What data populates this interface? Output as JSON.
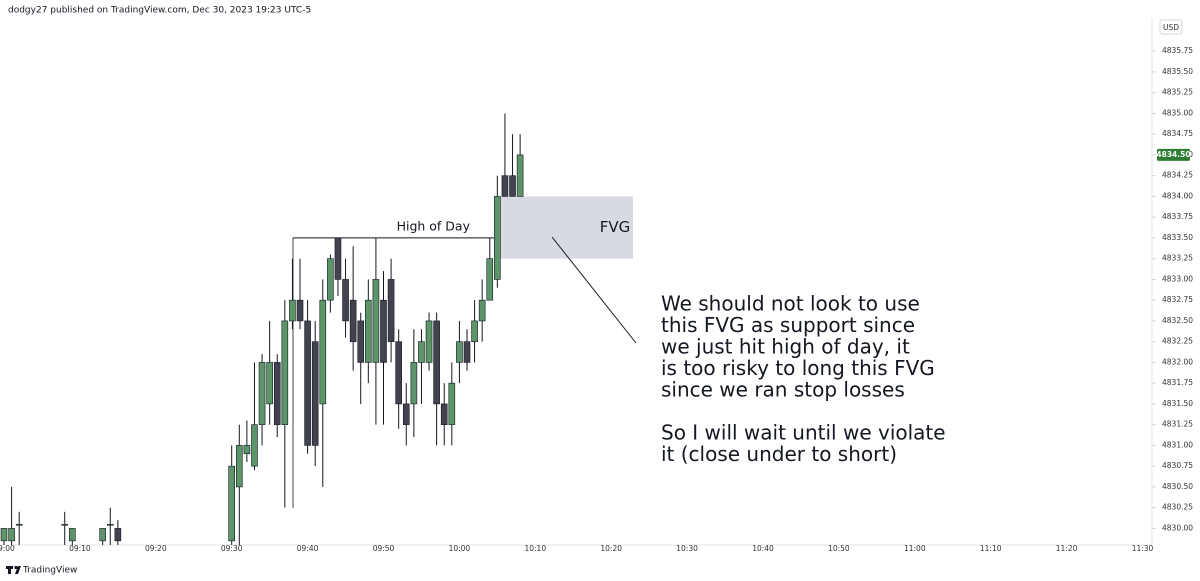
{
  "header": "dodgy27 published on TradingView.com, Dec 30, 2023 19:23 UTC-5",
  "footer": "TradingView",
  "chart_data": {
    "type": "candlestick",
    "currency": "USD",
    "up_color": "#5b9568",
    "down_color": "#434350",
    "x": [
      "09:00",
      "09:01",
      "09:02",
      "09:08",
      "09:09",
      "09:13",
      "09:14",
      "09:15",
      "09:30",
      "09:31",
      "09:32",
      "09:33",
      "09:34",
      "09:35",
      "09:36",
      "09:37",
      "09:38",
      "09:39",
      "09:40",
      "09:41",
      "09:42",
      "09:43",
      "09:44",
      "09:45",
      "09:46",
      "09:47",
      "09:48",
      "09:49",
      "09:50",
      "09:51",
      "09:52",
      "09:53",
      "09:54",
      "09:55",
      "09:56",
      "09:57",
      "09:58",
      "09:59",
      "10:00",
      "10:01",
      "10:02",
      "10:03",
      "10:04",
      "10:05",
      "10:06",
      "10:07",
      "10:08"
    ],
    "open": [
      4829.85,
      4829.85,
      4830.05,
      4830.05,
      4829.85,
      4829.85,
      4830.05,
      4830.0,
      4829.85,
      4830.5,
      4830.9,
      4830.75,
      4831.25,
      4831.5,
      4832.0,
      4831.25,
      4832.5,
      4832.75,
      4832.5,
      4832.25,
      4831.5,
      4832.75,
      4833.5,
      4833.0,
      4832.75,
      4832.5,
      4832.0,
      4832.0,
      4832.75,
      4833.0,
      4832.25,
      4831.5,
      4831.5,
      4832.0,
      4832.0,
      4832.5,
      4831.5,
      4831.25,
      4832.0,
      4832.25,
      4832.25,
      4832.5,
      4832.75,
      4833.0,
      4834.25,
      4834.25,
      4834.0
    ],
    "high": [
      4830.0,
      4830.5,
      4830.2,
      4830.2,
      4830.0,
      4830.0,
      4830.25,
      4830.1,
      4831.0,
      4831.25,
      4831.3,
      4832.0,
      4832.1,
      4832.5,
      4832.1,
      4832.75,
      4833.25,
      4833.25,
      4832.75,
      4832.5,
      4833.0,
      4833.3,
      4833.5,
      4833.25,
      4833.4,
      4832.6,
      4833.0,
      4833.5,
      4833.1,
      4833.25,
      4832.4,
      4831.75,
      4832.4,
      4832.4,
      4832.6,
      4832.6,
      4831.75,
      4832.0,
      4832.5,
      4832.4,
      4832.75,
      4833.0,
      4833.5,
      4834.25,
      4835.0,
      4834.75,
      4834.75
    ],
    "low": [
      4829.8,
      4829.8,
      4829.8,
      4829.8,
      4829.8,
      4829.8,
      4829.8,
      4829.8,
      4829.8,
      4829.8,
      4830.8,
      4830.7,
      4831.0,
      4831.25,
      4831.1,
      4830.25,
      4832.4,
      4832.4,
      4830.9,
      4830.75,
      4830.5,
      4832.6,
      4832.8,
      4832.3,
      4831.9,
      4831.5,
      4831.75,
      4831.25,
      4831.25,
      4832.0,
      4831.2,
      4831.0,
      4831.1,
      4831.5,
      4831.9,
      4831.0,
      4831.0,
      4831.0,
      4831.75,
      4831.9,
      4832.0,
      4832.25,
      4832.75,
      4832.9,
      4834.0,
      4834.0,
      4834.0
    ],
    "close": [
      4830.0,
      4830.0,
      4830.05,
      4830.05,
      4830.0,
      4830.0,
      4830.05,
      4829.85,
      4830.75,
      4831.0,
      4831.0,
      4831.25,
      4832.0,
      4832.0,
      4831.25,
      4832.5,
      4832.75,
      4832.5,
      4831.0,
      4831.0,
      4832.75,
      4833.25,
      4833.0,
      4832.5,
      4832.25,
      4832.0,
      4832.75,
      4833.0,
      4832.0,
      4832.25,
      4831.5,
      4831.25,
      4832.0,
      4832.25,
      4832.5,
      4831.5,
      4831.25,
      4831.75,
      4832.25,
      4832.0,
      4832.5,
      4832.75,
      4833.25,
      4834.0,
      4834.0,
      4834.0,
      4834.5
    ],
    "ylim": [
      4829.8,
      4836.15
    ],
    "yticks": [
      {
        "value": 4830.0,
        "label": "4830.00"
      },
      {
        "value": 4830.25,
        "label": "4830.25"
      },
      {
        "value": 4830.5,
        "label": "4830.50"
      },
      {
        "value": 4830.75,
        "label": "4830.75"
      },
      {
        "value": 4831.0,
        "label": "4831.00"
      },
      {
        "value": 4831.25,
        "label": "4831.25"
      },
      {
        "value": 4831.5,
        "label": "4831.50"
      },
      {
        "value": 4831.75,
        "label": "4831.75"
      },
      {
        "value": 4832.0,
        "label": "4832.00"
      },
      {
        "value": 4832.25,
        "label": "4832.25"
      },
      {
        "value": 4832.5,
        "label": "4832.50"
      },
      {
        "value": 4832.75,
        "label": "4832.75"
      },
      {
        "value": 4833.0,
        "label": "4833.00"
      },
      {
        "value": 4833.25,
        "label": "4833.25"
      },
      {
        "value": 4833.5,
        "label": "4833.50"
      },
      {
        "value": 4833.75,
        "label": "4833.75"
      },
      {
        "value": 4834.0,
        "label": "4834.00"
      },
      {
        "value": 4834.25,
        "label": "4834.25"
      },
      {
        "value": 4834.5,
        "label": "4834.50"
      },
      {
        "value": 4834.75,
        "label": "4834.75"
      },
      {
        "value": 4835.0,
        "label": "4835.00"
      },
      {
        "value": 4835.25,
        "label": "4835.25"
      },
      {
        "value": 4835.5,
        "label": "4835.50"
      },
      {
        "value": 4835.75,
        "label": "4835.75"
      }
    ],
    "xticks": [
      "09:00",
      "09:10",
      "09:20",
      "09:30",
      "09:40",
      "09:50",
      "10:00",
      "10:10",
      "10:20",
      "10:30",
      "10:40",
      "10:50",
      "11:00",
      "11:10",
      "11:20",
      "11:30"
    ],
    "last_price": {
      "value": 4834.5,
      "label": "4834.50"
    },
    "high_of_day": {
      "label": "High of Day",
      "value": 4833.5
    },
    "fvg": {
      "label": "FVG",
      "top": 4834.0,
      "bottom": 4833.25
    },
    "note": [
      [
        "We should not look to use",
        "this FVG as support since",
        "we just hit high of day, it",
        "is too risky to long this FVG",
        "since we ran stop losses"
      ],
      [
        "So I will wait until we violate",
        "it (close under to short)"
      ]
    ]
  }
}
